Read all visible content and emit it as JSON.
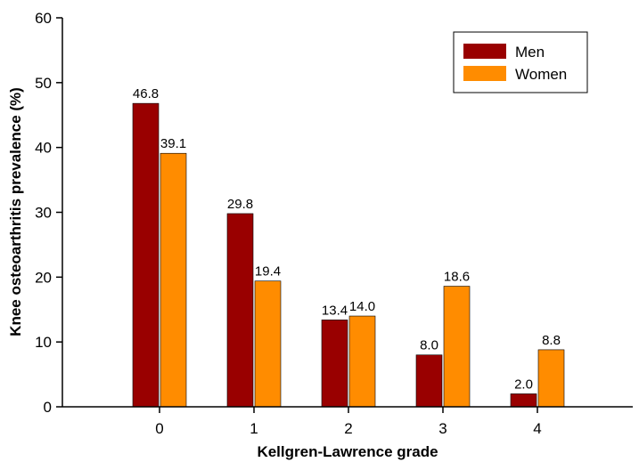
{
  "chart_data": {
    "type": "bar",
    "categories": [
      "0",
      "1",
      "2",
      "3",
      "4"
    ],
    "series": [
      {
        "name": "Men",
        "values": [
          46.8,
          29.8,
          13.4,
          8.0,
          2.0
        ],
        "labels": [
          "46.8",
          "29.8",
          "13.4",
          "8.0",
          "2.0"
        ],
        "color": "#990000"
      },
      {
        "name": "Women",
        "values": [
          39.1,
          19.4,
          14.0,
          18.6,
          8.8
        ],
        "labels": [
          "39.1",
          "19.4",
          "14.0",
          "18.6",
          "8.8"
        ],
        "color": "#ff8c00"
      }
    ],
    "xlabel": "Kellgren-Lawrence grade",
    "ylabel": "Knee osteoarthritis prevalence (%)",
    "ylim": [
      0,
      60
    ],
    "yticks": [
      "0",
      "10",
      "20",
      "30",
      "40",
      "50",
      "60"
    ],
    "grid": false,
    "legend_position": "top-right"
  }
}
